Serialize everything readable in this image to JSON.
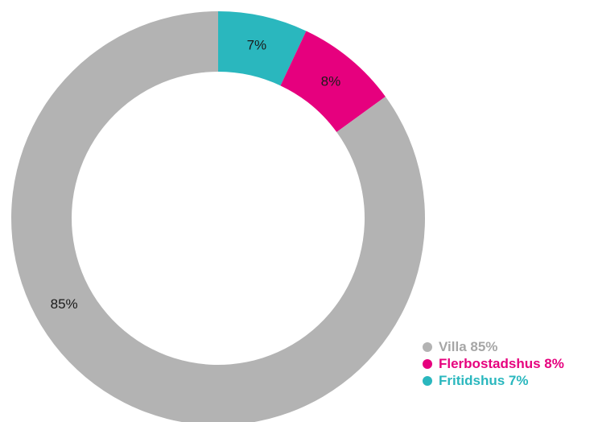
{
  "chart_data": {
    "type": "pie",
    "variant": "donut",
    "title": "",
    "slices": [
      {
        "label": "Villa",
        "value": 85,
        "display": "85%",
        "legend_text": "Villa 85%",
        "color": "#b3b3b3"
      },
      {
        "label": "Flerbostadshus",
        "value": 8,
        "display": "8%",
        "legend_text": "Flerbostadshus 8%",
        "color": "#e6007e"
      },
      {
        "label": "Fritidshus",
        "value": 7,
        "display": "7%",
        "legend_text": "Fritidshus 7%",
        "color": "#2ab7be"
      }
    ],
    "start": "12 o'clock",
    "direction": "clockwise",
    "draw_order": [
      "Fritidshus",
      "Flerbostadshus",
      "Villa"
    ],
    "legend_position": "bottom-right"
  }
}
